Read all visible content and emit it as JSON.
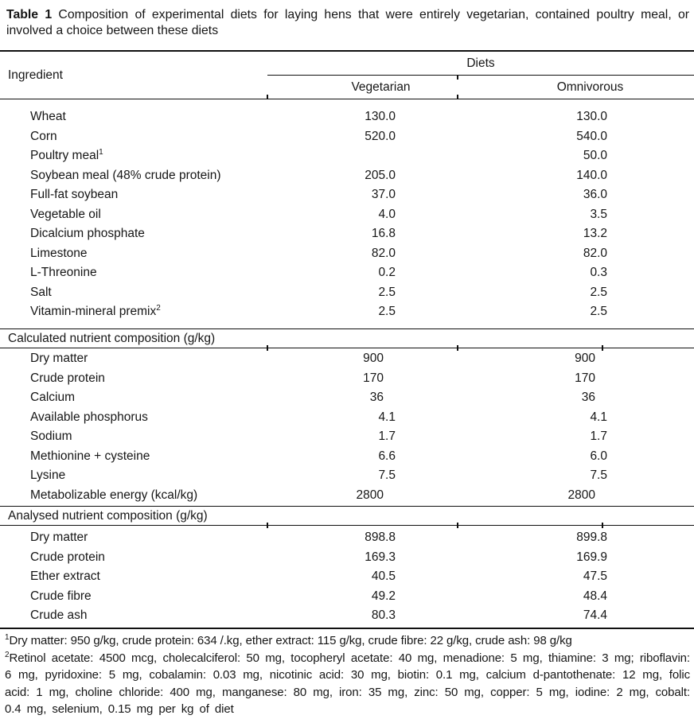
{
  "caption": {
    "label": "Table 1",
    "text": "Composition of experimental diets for laying hens that were entirely vegetarian, contained poultry meal, or involved a choice between these diets"
  },
  "table": {
    "col_ingredient": "Ingredient",
    "diets_header": "Diets",
    "columns": [
      "Vegetarian",
      "Omnivorous"
    ],
    "sections": [
      {
        "rows": [
          {
            "name": "Wheat",
            "veg": "130.0",
            "omni": "130.0"
          },
          {
            "name": "Corn",
            "veg": "520.0",
            "omni": "540.0"
          },
          {
            "name": "Poultry meal",
            "sup": "1",
            "veg": "",
            "omni": "50.0"
          },
          {
            "name": "Soybean meal (48% crude protein)",
            "veg": "205.0",
            "omni": "140.0"
          },
          {
            "name": "Full-fat soybean",
            "veg": "37.0",
            "omni": "36.0"
          },
          {
            "name": "Vegetable oil",
            "veg": "4.0",
            "omni": "3.5"
          },
          {
            "name": "Dicalcium phosphate",
            "veg": "16.8",
            "omni": "13.2"
          },
          {
            "name": "Limestone",
            "veg": "82.0",
            "omni": "82.0"
          },
          {
            "name": "L-Threonine",
            "veg": "0.2",
            "omni": "0.3"
          },
          {
            "name": "Salt",
            "veg": "2.5",
            "omni": "2.5"
          },
          {
            "name": "Vitamin-mineral premix",
            "sup": "2",
            "veg": "2.5",
            "omni": "2.5"
          }
        ]
      },
      {
        "header": "Calculated nutrient composition (g/kg)",
        "rows": [
          {
            "name": "Dry matter",
            "veg": "900",
            "omni": "900"
          },
          {
            "name": "Crude protein",
            "veg": "170",
            "omni": "170"
          },
          {
            "name": "Calcium",
            "veg": "36",
            "omni": "36"
          },
          {
            "name": "Available phosphorus",
            "veg": "4.1",
            "omni": "4.1"
          },
          {
            "name": "Sodium",
            "veg": "1.7",
            "omni": "1.7"
          },
          {
            "name": "Methionine + cysteine",
            "veg": "6.6",
            "omni": "6.0"
          },
          {
            "name": "Lysine",
            "veg": "7.5",
            "omni": "7.5"
          },
          {
            "name": "Metabolizable energy (kcal/kg)",
            "veg": "2800",
            "omni": "2800"
          }
        ]
      },
      {
        "header": "Analysed nutrient composition (g/kg)",
        "rows": [
          {
            "name": "Dry matter",
            "veg": "898.8",
            "omni": "899.8"
          },
          {
            "name": "Crude protein",
            "veg": "169.3",
            "omni": "169.9"
          },
          {
            "name": "Ether extract",
            "veg": "40.5",
            "omni": "47.5"
          },
          {
            "name": "Crude fibre",
            "veg": "49.2",
            "omni": "48.4"
          },
          {
            "name": "Crude ash",
            "veg": "80.3",
            "omni": "74.4"
          }
        ]
      }
    ]
  },
  "footnotes": [
    {
      "sup": "1",
      "text": "Dry matter: 950 g/kg, crude protein: 634 /.kg, ether extract: 115 g/kg, crude fibre: 22 g/kg, crude ash: 98 g/kg"
    },
    {
      "sup": "2",
      "text": "Retinol acetate: 4500 mcg, cholecalciferol: 50 mg, tocopheryl acetate: 40 mg, menadione: 5 mg, thiamine: 3 mg; riboflavin: 6 mg, pyridoxine: 5 mg, cobalamin: 0.03 mg, nicotinic acid: 30 mg, biotin: 0.1 mg, calcium d-pantothenate: 12 mg, folic acid: 1 mg, choline chloride: 400 mg, manganese: 80 mg, iron: 35 mg, zinc: 50 mg, copper: 5 mg, iodine: 2 mg, cobalt: 0.4 mg, selenium, 0.15 mg per kg of diet"
    }
  ]
}
